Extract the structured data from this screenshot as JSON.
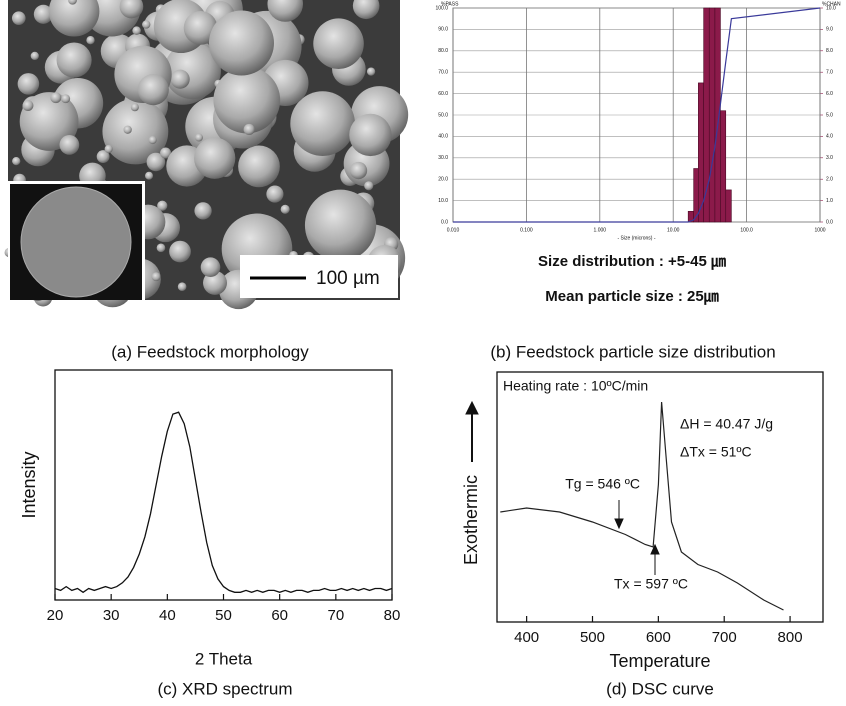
{
  "image": {
    "caption": "(a) Feedstock morphology",
    "scale_bar": "100 µm"
  },
  "chart_data": [
    {
      "type": "histogram",
      "y_label": "%PASS",
      "y2_label": "%CHAN",
      "x_label": "- Size (microns) -",
      "annotations": [
        "Size distribution : +5-45 ㎛",
        "Mean particle size : 25㎛"
      ],
      "caption": "(b) Feedstock particle size distribution",
      "xscale": "log",
      "xlim": [
        0.01,
        1000
      ],
      "xticks": [
        {
          "value": 0.01,
          "label": "0.010"
        },
        {
          "value": 0.1,
          "label": "0.100"
        },
        {
          "value": 1,
          "label": "1.000"
        },
        {
          "value": 10,
          "label": "10.00"
        },
        {
          "value": 100,
          "label": "100.0"
        },
        1000
      ],
      "ylim": [
        0,
        100
      ],
      "yticks": [
        {
          "value": 0,
          "label": "0.0"
        },
        {
          "value": 10,
          "label": "10.0"
        },
        {
          "value": 20,
          "label": "20.0"
        },
        {
          "value": 30,
          "label": "30.0"
        },
        {
          "value": 40,
          "label": "40.0"
        },
        {
          "value": 50,
          "label": "50.0"
        },
        {
          "value": 60,
          "label": "60.0"
        },
        {
          "value": 70,
          "label": "70.0"
        },
        {
          "value": 80,
          "label": "80.0"
        },
        {
          "value": 90,
          "label": "90.0"
        },
        {
          "value": 100,
          "label": "100.0"
        }
      ],
      "y2lim": [
        0,
        10
      ],
      "y2ticks": [
        {
          "value": 0,
          "label": "0.0"
        },
        {
          "value": 1,
          "label": "1.0"
        },
        {
          "value": 2,
          "label": "2.0"
        },
        {
          "value": 3,
          "label": "3.0"
        },
        {
          "value": 4,
          "label": "4.0"
        },
        {
          "value": 5,
          "label": "5.0"
        },
        {
          "value": 6,
          "label": "6.0"
        },
        {
          "value": 7,
          "label": "7.0"
        },
        {
          "value": 8,
          "label": "8.0"
        },
        {
          "value": 9,
          "label": "9.0"
        },
        {
          "value": 10,
          "label": "10.0"
        }
      ],
      "grid": true,
      "bins": [
        16,
        19,
        22,
        26,
        31,
        37,
        44,
        52,
        62
      ],
      "values": [
        0.5,
        2.5,
        6.5,
        10,
        10,
        10,
        5.2,
        1.5
      ],
      "axis": "y2",
      "color": "#8b1a4a",
      "cumulative": {
        "x": [
          0.01,
          16,
          19,
          22,
          26,
          31,
          37,
          44,
          52,
          62,
          1000
        ],
        "values": [
          0,
          0,
          1,
          4,
          10,
          20,
          35,
          55,
          75,
          95,
          100
        ],
        "color": "#3a3a9a"
      }
    },
    {
      "type": "line",
      "x_label": "2 Theta",
      "y_label": "Intensity",
      "caption": "(c) XRD spectrum",
      "xlim": [
        20,
        80
      ],
      "xticks": [
        20,
        30,
        40,
        50,
        60,
        70,
        80
      ],
      "ylim": [
        0,
        120
      ],
      "color": "#111111",
      "x": [
        20,
        21,
        22,
        23,
        24,
        25,
        26,
        27,
        28,
        29,
        30,
        31,
        32,
        33,
        34,
        35,
        36,
        37,
        38,
        39,
        40,
        41,
        42,
        43,
        44,
        45,
        46,
        47,
        48,
        49,
        50,
        51,
        52,
        53,
        54,
        55,
        56,
        57,
        58,
        59,
        60,
        61,
        62,
        63,
        64,
        65,
        66,
        67,
        68,
        69,
        70,
        71,
        72,
        73,
        74,
        75,
        76,
        77,
        78,
        79,
        80
      ],
      "values": [
        6,
        5,
        7,
        5,
        6,
        4,
        6,
        5,
        6,
        7,
        6,
        7,
        9,
        12,
        17,
        24,
        33,
        45,
        60,
        75,
        88,
        97,
        98,
        92,
        80,
        63,
        46,
        30,
        18,
        11,
        7,
        5,
        4,
        4,
        5,
        4,
        5,
        4,
        5,
        5,
        4,
        5,
        4,
        5,
        5,
        4,
        5,
        5,
        6,
        5,
        5,
        6,
        5,
        6,
        5,
        6,
        5,
        6,
        6,
        5,
        6
      ]
    },
    {
      "type": "line",
      "x_label": "Temperature",
      "y_label": "Exothermic",
      "caption": "(d) DSC curve",
      "annotations": [
        "Heating rate : 10ºC/min",
        "ΔH = 40.47 J/g",
        "ΔTx = 51ºC",
        "Tg = 546 ºC",
        "Tx = 597 ºC"
      ],
      "xlim": [
        355,
        850
      ],
      "xticks": [
        400,
        500,
        600,
        700,
        800
      ],
      "ylim": [
        0,
        100
      ],
      "color": "#222222",
      "x": [
        360,
        400,
        450,
        500,
        550,
        580,
        592,
        600,
        605,
        612,
        620,
        635,
        660,
        690,
        720,
        760,
        790
      ],
      "values": [
        44,
        45.6,
        44,
        40,
        35,
        31,
        30,
        55,
        88,
        65,
        40,
        28,
        23,
        20,
        15.6,
        8.8,
        4.8
      ]
    }
  ]
}
